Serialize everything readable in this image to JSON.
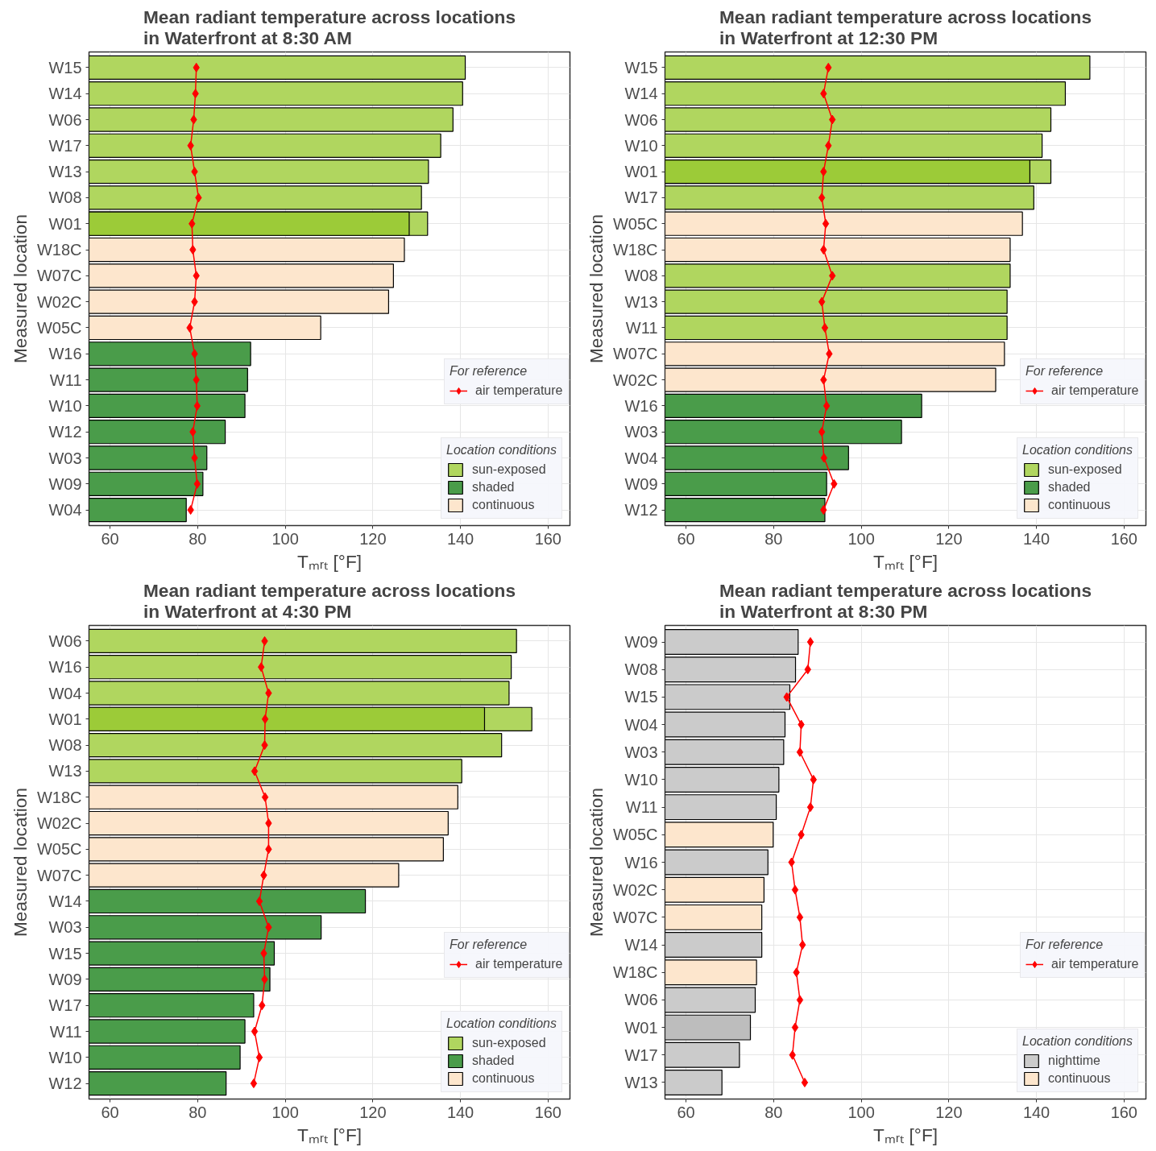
{
  "chart_data": [
    {
      "type": "bar",
      "orientation": "horizontal",
      "title": "Mean radiant temperature across locations\nin Waterfront at 8:30 AM",
      "xlabel": "Tₘᵣₜ [°F]",
      "ylabel": "Measured location",
      "legend_title": "Location conditions",
      "annotations": [
        "For reference"
      ],
      "grid": true,
      "legend": "bottom right",
      "marker": "diamond",
      "xlim": [
        55.2,
        165
      ],
      "xticks": [
        60,
        80,
        100,
        120,
        140,
        160
      ],
      "categories": [
        "W15",
        "W14",
        "W06",
        "W17",
        "W13",
        "W08",
        "W01",
        "W18C",
        "W07C",
        "W02C",
        "W05C",
        "W16",
        "W11",
        "W10",
        "W12",
        "W03",
        "W09",
        "W04"
      ],
      "series": [
        {
          "name": "sun-exposed",
          "color": "#b0d65f",
          "values": [
            141.1,
            140.5,
            138.3,
            135.5,
            132.7,
            131.1,
            132.5,
            null,
            null,
            null,
            null,
            null,
            null,
            null,
            null,
            null,
            null,
            null
          ]
        },
        {
          "name": "shaded",
          "color": "#4a9c4a",
          "values": [
            null,
            null,
            null,
            null,
            null,
            null,
            null,
            null,
            null,
            null,
            null,
            92.1,
            91.4,
            90.8,
            86.3,
            82.1,
            81.2,
            77.4
          ]
        },
        {
          "name": "continuous",
          "color": "#fde6cd",
          "values": [
            null,
            null,
            null,
            null,
            null,
            null,
            null,
            127.2,
            124.7,
            123.6,
            108.1,
            null,
            null,
            null,
            null,
            null,
            null,
            null
          ]
        },
        {
          "color": "#9ccb38",
          "values": [
            null,
            null,
            null,
            null,
            null,
            null,
            128.3,
            null,
            null,
            null,
            null,
            null,
            null,
            null,
            null,
            null,
            null,
            null
          ]
        },
        {
          "name": "air temperature",
          "type": "line",
          "color": "#ff0000",
          "values": [
            79.7,
            79.5,
            79.1,
            78.4,
            79.3,
            80.2,
            78.7,
            78.9,
            79.7,
            79.3,
            78.2,
            79.3,
            79.7,
            79.9,
            78.9,
            79.3,
            79.9,
            78.4
          ]
        }
      ]
    },
    {
      "type": "bar",
      "orientation": "horizontal",
      "title": "Mean radiant temperature across locations\nin Waterfront at 12:30 PM",
      "xlabel": "Tₘᵣₜ [°F]",
      "ylabel": "Measured location",
      "legend_title": "Location conditions",
      "annotations": [
        "For reference"
      ],
      "grid": true,
      "legend": "bottom right",
      "marker": "diamond",
      "xlim": [
        55.2,
        165
      ],
      "xticks": [
        60,
        80,
        100,
        120,
        140,
        160
      ],
      "categories": [
        "W15",
        "W14",
        "W06",
        "W10",
        "W01",
        "W17",
        "W05C",
        "W18C",
        "W08",
        "W13",
        "W11",
        "W07C",
        "W02C",
        "W16",
        "W03",
        "W04",
        "W09",
        "W12"
      ],
      "series": [
        {
          "name": "sun-exposed",
          "color": "#b0d65f",
          "values": [
            152.2,
            146.6,
            143.3,
            141.3,
            143.3,
            139.4,
            null,
            null,
            134.0,
            133.3,
            133.3,
            null,
            null,
            null,
            null,
            null,
            null,
            null
          ]
        },
        {
          "name": "shaded",
          "color": "#4a9c4a",
          "values": [
            null,
            null,
            null,
            null,
            null,
            null,
            null,
            null,
            null,
            null,
            null,
            null,
            null,
            113.8,
            109.2,
            97.1,
            92.1,
            91.7
          ]
        },
        {
          "name": "continuous",
          "color": "#fde6cd",
          "values": [
            null,
            null,
            null,
            null,
            null,
            null,
            136.8,
            134.0,
            null,
            null,
            null,
            132.7,
            130.7,
            null,
            null,
            null,
            null,
            null
          ]
        },
        {
          "color": "#9ccb38",
          "values": [
            null,
            null,
            null,
            null,
            138.5,
            null,
            null,
            null,
            null,
            null,
            null,
            null,
            null,
            null,
            null,
            null,
            null,
            null
          ]
        },
        {
          "name": "air temperature",
          "type": "line",
          "color": "#ff0000",
          "values": [
            92.5,
            91.4,
            93.4,
            92.5,
            91.4,
            91.0,
            91.9,
            91.4,
            93.4,
            91.0,
            91.7,
            92.7,
            91.4,
            92.1,
            91.0,
            91.5,
            93.8,
            91.4
          ]
        }
      ]
    },
    {
      "type": "bar",
      "orientation": "horizontal",
      "title": "Mean radiant temperature across locations\nin Waterfront at 4:30 PM",
      "xlabel": "Tₘᵣₜ [°F]",
      "ylabel": "Measured location",
      "legend_title": "Location conditions",
      "annotations": [
        "For reference"
      ],
      "grid": true,
      "legend": "bottom right",
      "marker": "diamond",
      "xlim": [
        55.2,
        165
      ],
      "xticks": [
        60,
        80,
        100,
        120,
        140,
        160
      ],
      "categories": [
        "W06",
        "W16",
        "W04",
        "W01",
        "W08",
        "W13",
        "W18C",
        "W02C",
        "W05C",
        "W07C",
        "W14",
        "W03",
        "W15",
        "W09",
        "W17",
        "W11",
        "W10",
        "W12"
      ],
      "series": [
        {
          "name": "sun-exposed",
          "color": "#b0d65f",
          "values": [
            152.8,
            151.6,
            151.1,
            156.3,
            149.4,
            140.3,
            null,
            null,
            null,
            null,
            null,
            null,
            null,
            null,
            null,
            null,
            null,
            null
          ]
        },
        {
          "name": "shaded",
          "color": "#4a9c4a",
          "values": [
            null,
            null,
            null,
            null,
            null,
            null,
            null,
            null,
            null,
            null,
            118.3,
            108.2,
            97.5,
            96.5,
            92.8,
            90.8,
            89.7,
            86.5
          ]
        },
        {
          "name": "continuous",
          "color": "#fde6cd",
          "values": [
            null,
            null,
            null,
            null,
            null,
            null,
            139.4,
            137.2,
            136.1,
            125.9,
            null,
            null,
            null,
            null,
            null,
            null,
            null,
            null
          ]
        },
        {
          "color": "#9ccb38",
          "values": [
            null,
            null,
            null,
            145.5,
            null,
            null,
            null,
            null,
            null,
            null,
            null,
            null,
            null,
            null,
            null,
            null,
            null,
            null
          ]
        },
        {
          "name": "air temperature",
          "type": "line",
          "color": "#ff0000",
          "values": [
            95.3,
            94.5,
            96.2,
            95.4,
            95.3,
            93.0,
            95.4,
            96.2,
            96.2,
            95.1,
            94.1,
            96.2,
            95.1,
            95.3,
            94.7,
            93.0,
            94.1,
            92.8
          ]
        }
      ]
    },
    {
      "type": "bar",
      "orientation": "horizontal",
      "title": "Mean radiant temperature across locations\nin Waterfront at 8:30 PM",
      "xlabel": "Tₘᵣₜ [°F]",
      "ylabel": "Measured location",
      "legend_title": "Location conditions",
      "annotations": [
        "For reference"
      ],
      "grid": true,
      "legend": "bottom right",
      "marker": "diamond",
      "xlim": [
        55.2,
        165
      ],
      "xticks": [
        60,
        80,
        100,
        120,
        140,
        160
      ],
      "categories": [
        "W09",
        "W08",
        "W15",
        "W04",
        "W03",
        "W10",
        "W11",
        "W05C",
        "W16",
        "W02C",
        "W07C",
        "W14",
        "W18C",
        "W06",
        "W01",
        "W17",
        "W13"
      ],
      "series": [
        {
          "name": "nighttime",
          "color": "#cbcbcb",
          "values": [
            85.6,
            85.0,
            83.7,
            82.6,
            82.3,
            81.2,
            80.6,
            null,
            78.7,
            null,
            null,
            77.3,
            null,
            75.8,
            null,
            72.2,
            68.2
          ]
        },
        {
          "name": "continuous",
          "color": "#fde6cd",
          "values": [
            null,
            null,
            null,
            null,
            null,
            null,
            null,
            79.9,
            null,
            77.8,
            77.3,
            null,
            76.1,
            null,
            null,
            null,
            null
          ]
        },
        {
          "color": "#bdbdbd",
          "values": [
            null,
            null,
            null,
            null,
            null,
            null,
            null,
            null,
            null,
            null,
            null,
            null,
            null,
            null,
            74.7,
            null,
            null
          ]
        },
        {
          "name": "air temperature",
          "type": "line",
          "color": "#ff0000",
          "values": [
            88.4,
            87.8,
            83.0,
            86.3,
            86.0,
            89.1,
            88.4,
            86.3,
            84.1,
            84.9,
            86.0,
            86.6,
            85.2,
            86.0,
            84.9,
            84.3,
            87.1
          ]
        }
      ]
    }
  ]
}
